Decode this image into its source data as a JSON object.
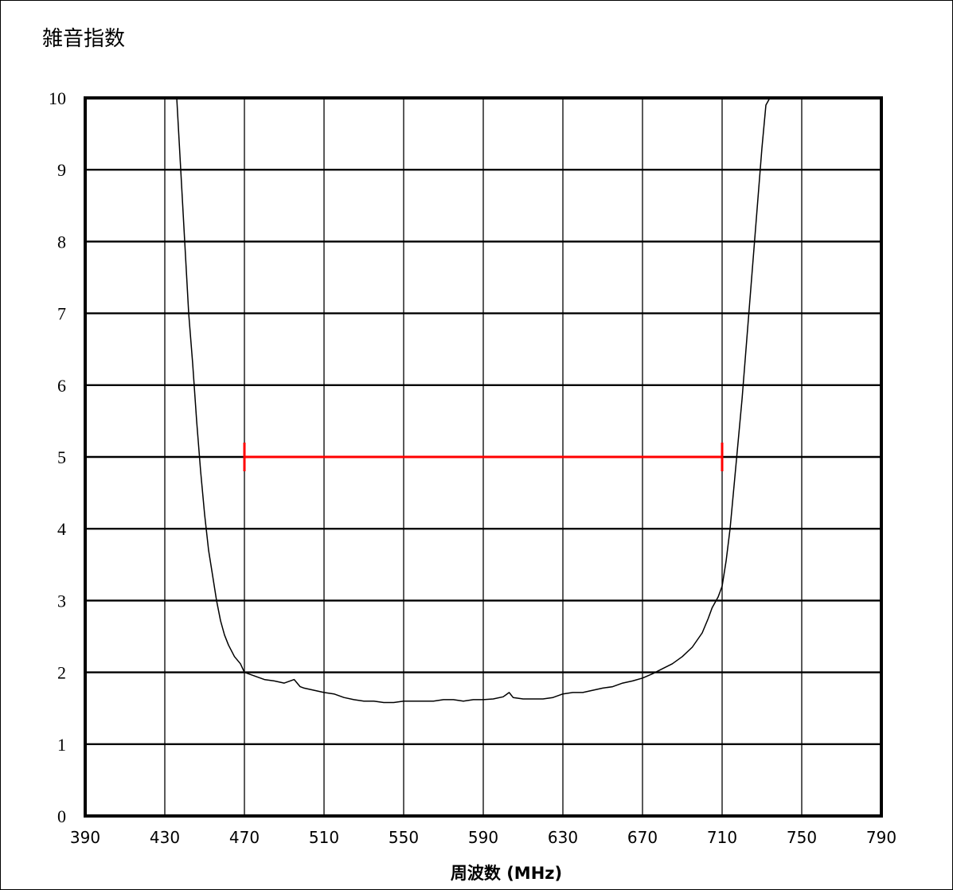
{
  "chart_data": {
    "type": "line",
    "title": "雑音指数",
    "xlabel": "周波数 (MHz)",
    "ylabel": "",
    "xlim": [
      390,
      790
    ],
    "ylim": [
      0,
      10
    ],
    "x_ticks": [
      "390",
      "430",
      "470",
      "510",
      "550",
      "590",
      "630",
      "670",
      "710",
      "750",
      "790"
    ],
    "y_ticks": [
      "0",
      "1",
      "2",
      "3",
      "4",
      "5",
      "6",
      "7",
      "8",
      "9",
      "10"
    ],
    "grid": true,
    "series": [
      {
        "color": "#000000",
        "x": [
          436,
          438,
          440,
          442,
          444,
          446,
          448,
          450,
          452,
          454,
          456,
          458,
          460,
          462,
          465,
          468,
          470,
          475,
          480,
          485,
          490,
          495,
          498,
          500,
          505,
          510,
          515,
          520,
          525,
          530,
          535,
          540,
          545,
          550,
          555,
          560,
          565,
          570,
          575,
          580,
          585,
          590,
          595,
          600,
          603,
          605,
          610,
          615,
          620,
          625,
          630,
          635,
          640,
          645,
          650,
          655,
          660,
          665,
          670,
          675,
          680,
          685,
          690,
          695,
          700,
          703,
          705,
          708,
          710,
          712,
          714,
          716,
          718,
          720,
          722,
          724,
          726,
          728,
          730,
          732,
          734
        ],
        "y": [
          10,
          9.0,
          8.0,
          7.0,
          6.3,
          5.5,
          4.8,
          4.2,
          3.7,
          3.35,
          3.0,
          2.72,
          2.52,
          2.38,
          2.22,
          2.12,
          2.0,
          1.95,
          1.9,
          1.88,
          1.85,
          1.9,
          1.8,
          1.78,
          1.75,
          1.72,
          1.7,
          1.65,
          1.62,
          1.6,
          1.6,
          1.58,
          1.58,
          1.6,
          1.6,
          1.6,
          1.6,
          1.62,
          1.62,
          1.6,
          1.62,
          1.62,
          1.63,
          1.66,
          1.72,
          1.65,
          1.63,
          1.63,
          1.63,
          1.65,
          1.7,
          1.72,
          1.72,
          1.75,
          1.78,
          1.8,
          1.85,
          1.88,
          1.92,
          1.98,
          2.05,
          2.12,
          2.22,
          2.35,
          2.55,
          2.75,
          2.9,
          3.05,
          3.2,
          3.55,
          4.0,
          4.6,
          5.2,
          5.8,
          6.5,
          7.2,
          7.9,
          8.6,
          9.3,
          9.9,
          10
        ]
      }
    ],
    "annotations": [
      {
        "type": "range-bar",
        "color": "#ff0000",
        "x_start": 470,
        "x_end": 710,
        "y": 5
      }
    ]
  }
}
